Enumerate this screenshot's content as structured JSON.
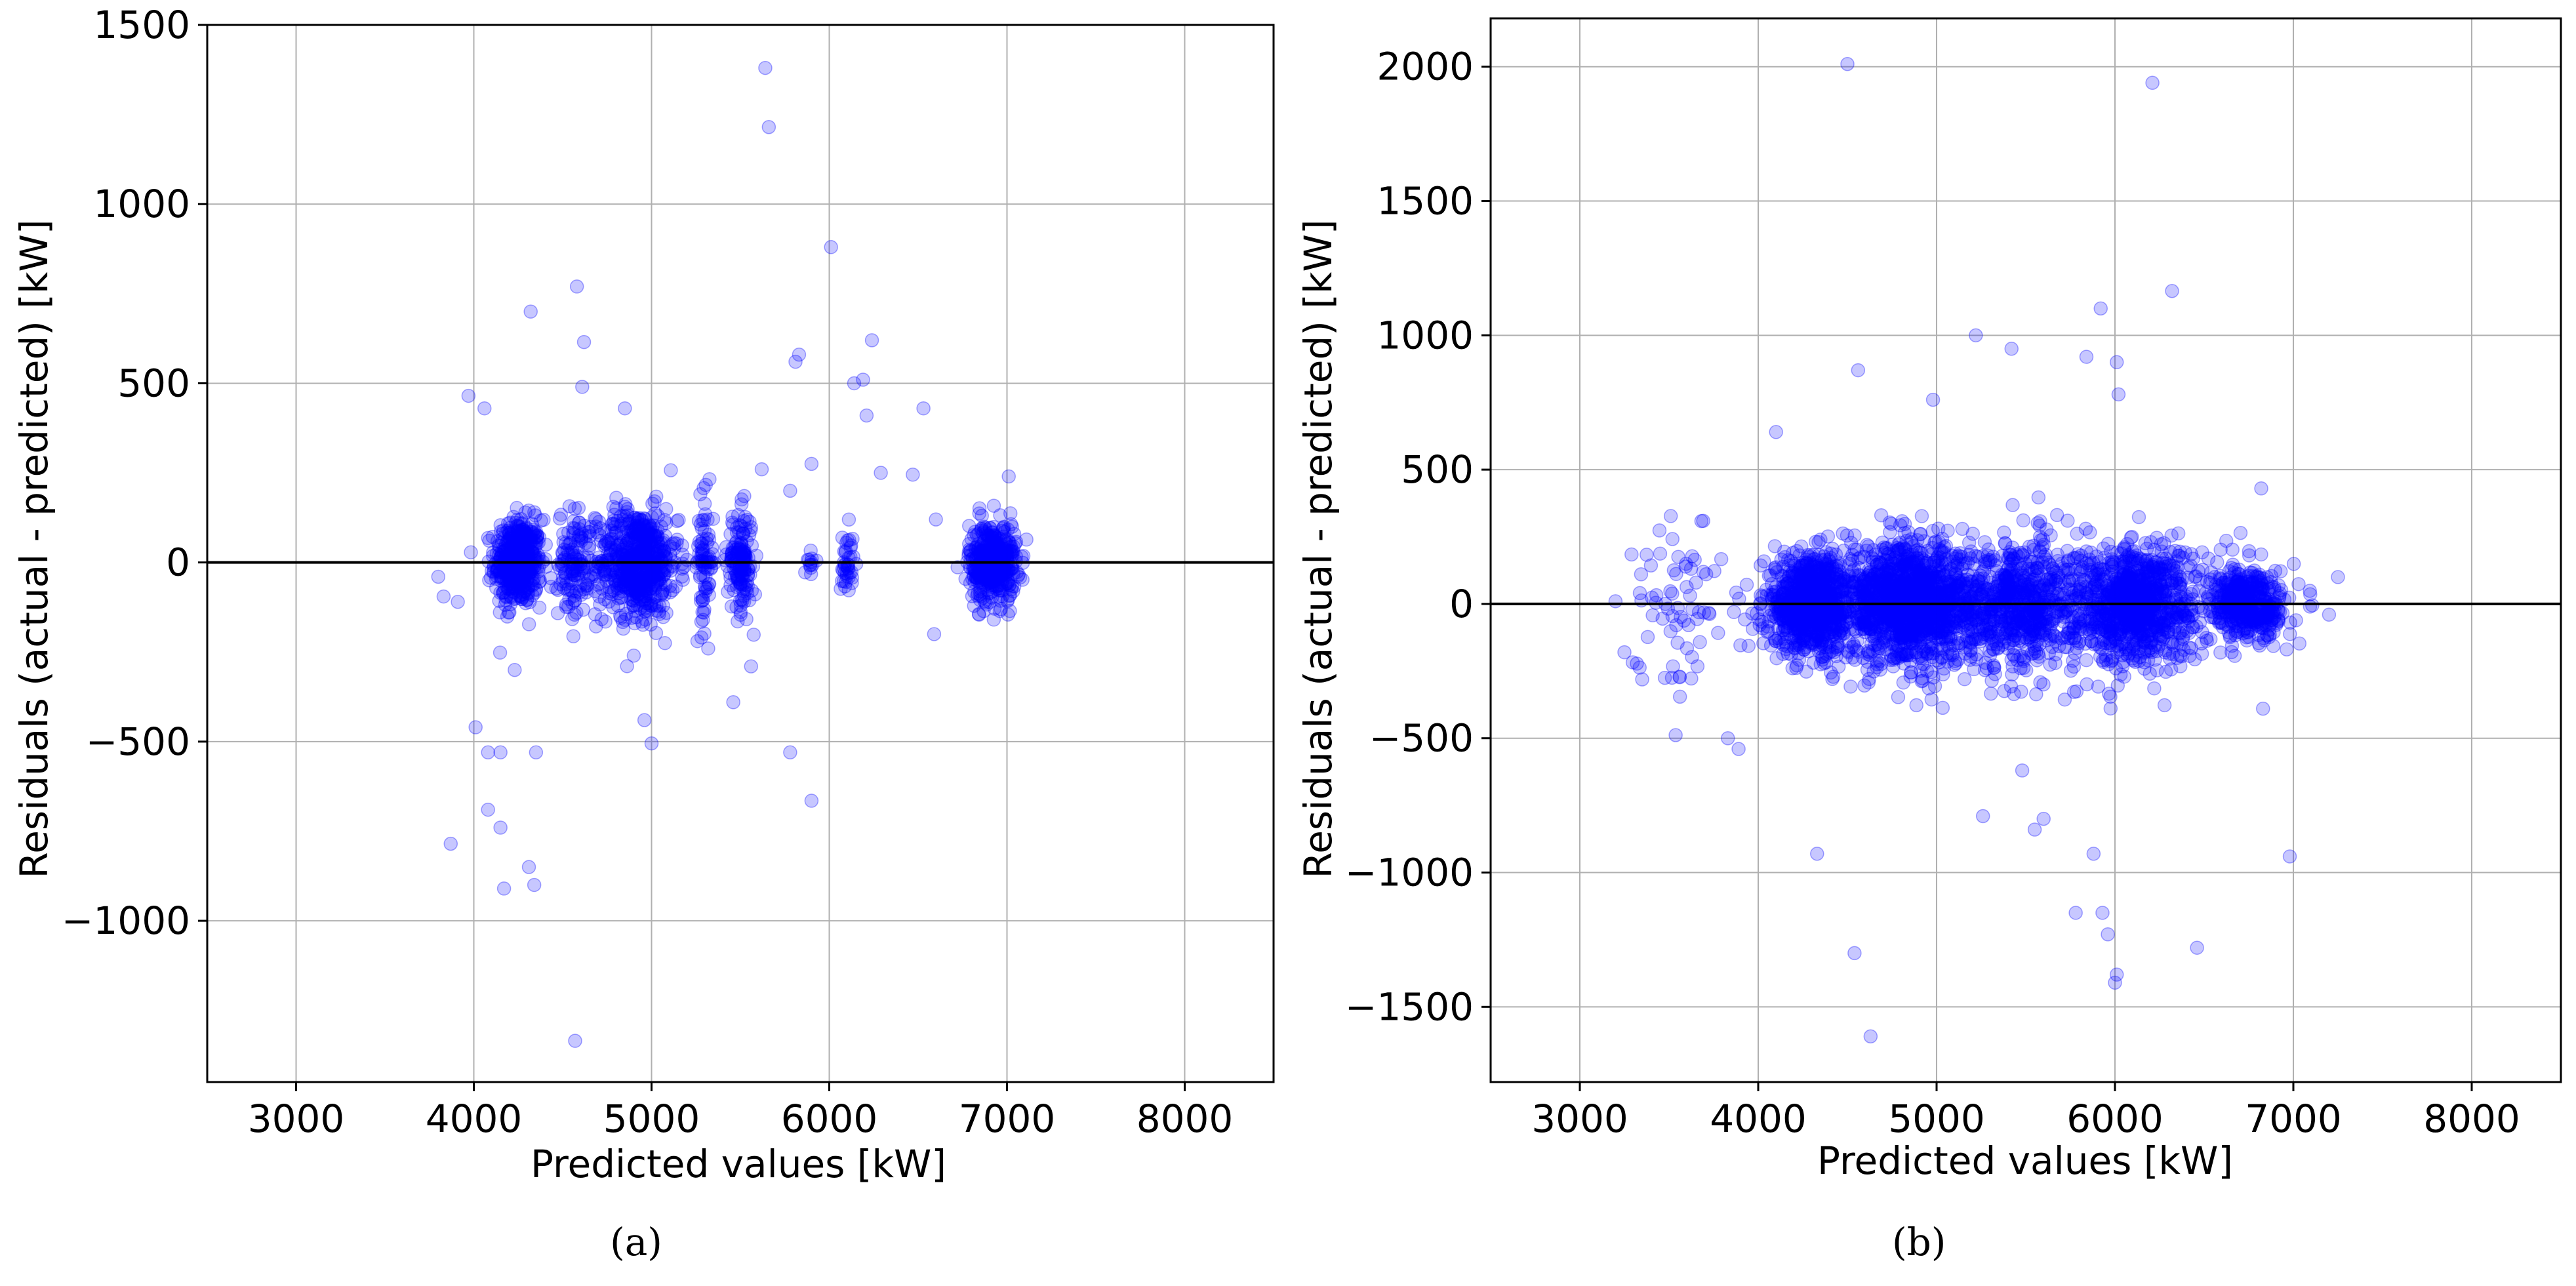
{
  "chart_data": [
    {
      "type": "scatter",
      "panel": "a",
      "xlabel": "Predicted values [kW]",
      "ylabel": "Residuals (actual - predicted) [kW]",
      "xlim": [
        2500,
        8500
      ],
      "ylim": [
        -1450,
        1500
      ],
      "xticks": [
        3000,
        4000,
        5000,
        6000,
        7000,
        8000
      ],
      "xtick_labels": [
        "3000",
        "4000",
        "5000",
        "6000",
        "7000",
        "8000"
      ],
      "yticks": [
        -1000,
        -500,
        0,
        500,
        1000,
        1500
      ],
      "ytick_labels": [
        "−1000",
        "−500",
        "0",
        "500",
        "1000",
        "1500"
      ],
      "grid": true,
      "reference_line_y": 0,
      "marker_color": "#0000ff",
      "clusters": [
        {
          "x_center": 4250,
          "x_spread": 110,
          "y_spread": 60,
          "count": 500
        },
        {
          "x_center": 4560,
          "x_spread": 70,
          "y_spread": 75,
          "count": 120
        },
        {
          "x_center": 4920,
          "x_spread": 190,
          "y_spread": 75,
          "count": 650
        },
        {
          "x_center": 5300,
          "x_spread": 40,
          "y_spread": 90,
          "count": 80
        },
        {
          "x_center": 5500,
          "x_spread": 60,
          "y_spread": 70,
          "count": 150
        },
        {
          "x_center": 5900,
          "x_spread": 20,
          "y_spread": 15,
          "count": 12
        },
        {
          "x_center": 6100,
          "x_spread": 30,
          "y_spread": 50,
          "count": 40
        },
        {
          "x_center": 6920,
          "x_spread": 110,
          "y_spread": 55,
          "count": 450
        }
      ],
      "points": [
        {
          "x": 5640,
          "y": 1380
        },
        {
          "x": 5660,
          "y": 1215
        },
        {
          "x": 6010,
          "y": 880
        },
        {
          "x": 4580,
          "y": 770
        },
        {
          "x": 4620,
          "y": 615
        },
        {
          "x": 4320,
          "y": 700
        },
        {
          "x": 3970,
          "y": 465
        },
        {
          "x": 4060,
          "y": 430
        },
        {
          "x": 4610,
          "y": 490
        },
        {
          "x": 4850,
          "y": 430
        },
        {
          "x": 5810,
          "y": 560
        },
        {
          "x": 5830,
          "y": 580
        },
        {
          "x": 6140,
          "y": 500
        },
        {
          "x": 6190,
          "y": 510
        },
        {
          "x": 6240,
          "y": 620
        },
        {
          "x": 6210,
          "y": 410
        },
        {
          "x": 6530,
          "y": 430
        },
        {
          "x": 6290,
          "y": 250
        },
        {
          "x": 6470,
          "y": 245
        },
        {
          "x": 6600,
          "y": 120
        },
        {
          "x": 7010,
          "y": 240
        },
        {
          "x": 5900,
          "y": 275
        },
        {
          "x": 5620,
          "y": 260
        },
        {
          "x": 5780,
          "y": 200
        },
        {
          "x": 3800,
          "y": -40
        },
        {
          "x": 3830,
          "y": -95
        },
        {
          "x": 3910,
          "y": -110
        },
        {
          "x": 4010,
          "y": -460
        },
        {
          "x": 4080,
          "y": -530
        },
        {
          "x": 4080,
          "y": -690
        },
        {
          "x": 4150,
          "y": -740
        },
        {
          "x": 4150,
          "y": -530
        },
        {
          "x": 4230,
          "y": -300
        },
        {
          "x": 4310,
          "y": -850
        },
        {
          "x": 4340,
          "y": -900
        },
        {
          "x": 4170,
          "y": -910
        },
        {
          "x": 4350,
          "y": -530
        },
        {
          "x": 3870,
          "y": -785
        },
        {
          "x": 4570,
          "y": -1335
        },
        {
          "x": 4960,
          "y": -440
        },
        {
          "x": 5000,
          "y": -505
        },
        {
          "x": 5460,
          "y": -390
        },
        {
          "x": 5780,
          "y": -530
        },
        {
          "x": 5900,
          "y": -665
        },
        {
          "x": 5560,
          "y": -290
        },
        {
          "x": 6590,
          "y": -200
        },
        {
          "x": 4900,
          "y": -260
        }
      ]
    },
    {
      "type": "scatter",
      "panel": "b",
      "xlabel": "Predicted values [kW]",
      "ylabel": "Residuals (actual - predicted) [kW]",
      "xlim": [
        2500,
        8500
      ],
      "ylim": [
        -1780,
        2180
      ],
      "xticks": [
        3000,
        4000,
        5000,
        6000,
        7000,
        8000
      ],
      "xtick_labels": [
        "3000",
        "4000",
        "5000",
        "6000",
        "7000",
        "8000"
      ],
      "yticks": [
        -1500,
        -1000,
        -500,
        0,
        500,
        1000,
        1500,
        2000
      ],
      "ytick_labels": [
        "−1500",
        "−1000",
        "−500",
        "0",
        "500",
        "1000",
        "1500",
        "2000"
      ],
      "grid": true,
      "reference_line_y": 0,
      "marker_color": "#0000ff",
      "clusters": [
        {
          "x_center": 4300,
          "x_spread": 220,
          "y_spread": 90,
          "count": 900
        },
        {
          "x_center": 4850,
          "x_spread": 300,
          "y_spread": 110,
          "count": 1300
        },
        {
          "x_center": 5450,
          "x_spread": 280,
          "y_spread": 120,
          "count": 700
        },
        {
          "x_center": 6100,
          "x_spread": 300,
          "y_spread": 110,
          "count": 1000
        },
        {
          "x_center": 6750,
          "x_spread": 180,
          "y_spread": 70,
          "count": 450
        },
        {
          "x_center": 3550,
          "x_spread": 200,
          "y_spread": 170,
          "count": 70
        }
      ],
      "points": [
        {
          "x": 4500,
          "y": 2010
        },
        {
          "x": 6210,
          "y": 1940
        },
        {
          "x": 6320,
          "y": 1165
        },
        {
          "x": 5920,
          "y": 1100
        },
        {
          "x": 5220,
          "y": 1000
        },
        {
          "x": 5420,
          "y": 950
        },
        {
          "x": 5840,
          "y": 920
        },
        {
          "x": 6010,
          "y": 900
        },
        {
          "x": 4560,
          "y": 870
        },
        {
          "x": 6020,
          "y": 780
        },
        {
          "x": 4100,
          "y": 640
        },
        {
          "x": 4980,
          "y": 760
        },
        {
          "x": 4330,
          "y": -930
        },
        {
          "x": 4540,
          "y": -1300
        },
        {
          "x": 4630,
          "y": -1610
        },
        {
          "x": 6010,
          "y": -1380
        },
        {
          "x": 6000,
          "y": -1410
        },
        {
          "x": 5960,
          "y": -1230
        },
        {
          "x": 5930,
          "y": -1150
        },
        {
          "x": 5780,
          "y": -1150
        },
        {
          "x": 6460,
          "y": -1280
        },
        {
          "x": 6980,
          "y": -940
        },
        {
          "x": 5880,
          "y": -930
        },
        {
          "x": 5550,
          "y": -840
        },
        {
          "x": 5600,
          "y": -800
        },
        {
          "x": 5480,
          "y": -620
        },
        {
          "x": 5260,
          "y": -790
        },
        {
          "x": 3250,
          "y": -180
        },
        {
          "x": 3200,
          "y": 10
        },
        {
          "x": 3890,
          "y": -540
        },
        {
          "x": 3830,
          "y": -500
        },
        {
          "x": 7250,
          "y": 100
        },
        {
          "x": 7200,
          "y": -40
        },
        {
          "x": 6820,
          "y": 430
        },
        {
          "x": 6830,
          "y": -390
        }
      ]
    }
  ],
  "captions": {
    "a": "(a)",
    "b": "(b)"
  }
}
